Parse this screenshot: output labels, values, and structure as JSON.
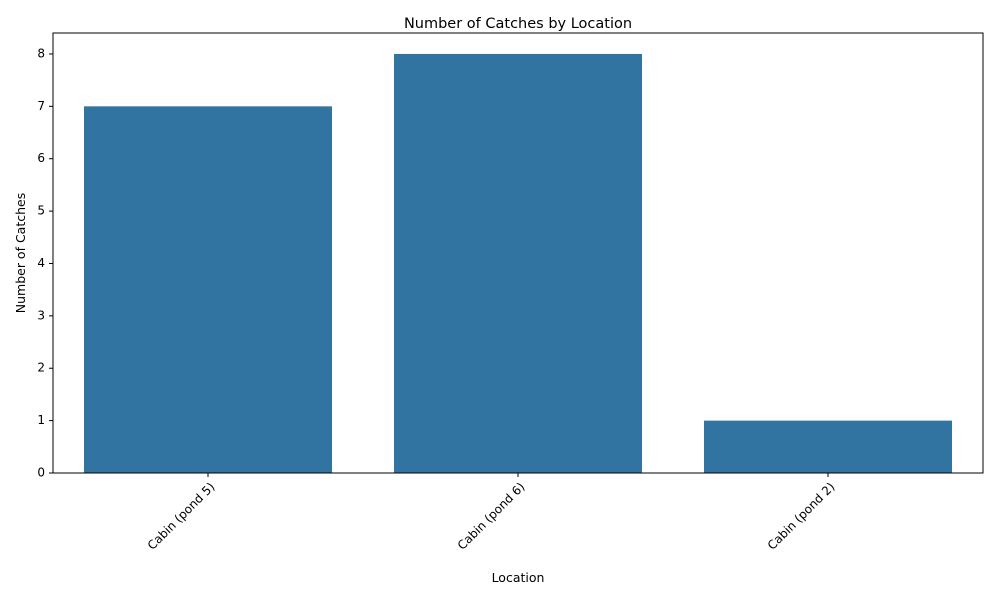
{
  "chart_data": {
    "type": "bar",
    "title": "Number of Catches by Location",
    "xlabel": "Location",
    "ylabel": "Number of Catches",
    "categories": [
      "Cabin (pond 5)",
      "Cabin (pond 6)",
      "Cabin (pond 2)"
    ],
    "values": [
      7,
      8,
      1
    ],
    "ylim": [
      0,
      8.4
    ],
    "yticks": [
      0,
      1,
      2,
      3,
      4,
      5,
      6,
      7,
      8
    ],
    "xtick_rotation_deg": 45,
    "bar_color": "#3274a1",
    "grid": false,
    "legend": "none"
  }
}
